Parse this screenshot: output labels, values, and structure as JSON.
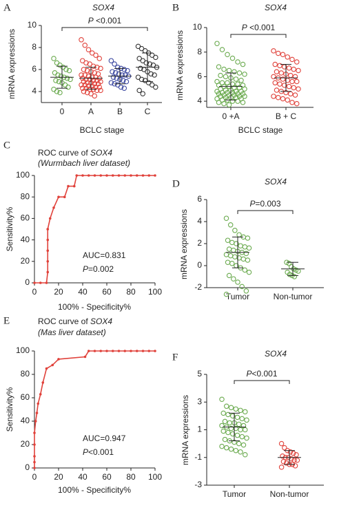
{
  "chart_data": [
    {
      "type": "dotplot",
      "panel": "A",
      "title": "SOX4",
      "ylabel": "mRNA expressions",
      "xlabel": "BCLC stage",
      "annotation": [
        "P",
        " <0.001"
      ],
      "ylim": [
        3,
        10
      ],
      "yticks": [
        4,
        6,
        8,
        10
      ],
      "categories": [
        "0",
        "A",
        "B",
        "C"
      ],
      "groups": [
        {
          "color": "#6aaa4e",
          "mean": 5.3,
          "sd": 1.0,
          "values": [
            7.0,
            6.6,
            6.4,
            6.2,
            6.0,
            5.9,
            5.7,
            5.5,
            5.4,
            5.3,
            5.2,
            5.1,
            5.0,
            4.9,
            4.8,
            4.6,
            4.4,
            4.2,
            4.0,
            3.9
          ]
        },
        {
          "color": "#e0413a",
          "mean": 5.2,
          "sd": 1.0,
          "values": [
            8.7,
            8.2,
            7.8,
            7.5,
            7.3,
            7.0,
            6.8,
            6.6,
            6.5,
            6.3,
            6.2,
            6.1,
            6.0,
            5.9,
            5.8,
            5.7,
            5.6,
            5.5,
            5.5,
            5.4,
            5.3,
            5.3,
            5.2,
            5.2,
            5.1,
            5.1,
            5.0,
            5.0,
            4.9,
            4.9,
            4.8,
            4.8,
            4.7,
            4.7,
            4.6,
            4.6,
            4.5,
            4.5,
            4.4,
            4.4,
            4.3,
            4.3,
            4.2,
            4.2,
            4.1,
            4.1,
            4.0,
            3.9,
            3.8,
            3.6
          ]
        },
        {
          "color": "#3a47a0",
          "mean": 5.4,
          "sd": 0.7,
          "values": [
            6.8,
            6.5,
            6.2,
            6.1,
            6.0,
            5.9,
            5.8,
            5.7,
            5.6,
            5.5,
            5.5,
            5.4,
            5.3,
            5.2,
            5.1,
            5.0,
            4.9,
            4.8,
            4.7,
            4.6,
            4.4,
            4.3
          ]
        },
        {
          "color": "#333333",
          "mean": 6.2,
          "sd": 1.3,
          "values": [
            8.1,
            7.9,
            7.7,
            7.5,
            7.3,
            7.1,
            7.0,
            6.8,
            6.6,
            6.5,
            6.4,
            6.2,
            6.1,
            6.0,
            5.8,
            5.6,
            5.5,
            5.3,
            5.1,
            5.0,
            4.8,
            4.6,
            4.4,
            4.1,
            3.8
          ]
        }
      ]
    },
    {
      "type": "dotplot",
      "panel": "B",
      "title": "SOX4",
      "ylabel": "mRNA expressions",
      "xlabel": "BCLC stage",
      "annotation": [
        "P",
        " <0.001"
      ],
      "ylim": [
        3.5,
        10
      ],
      "yticks": [
        4,
        6,
        8,
        10
      ],
      "categories": [
        "0 +A",
        "B + C"
      ],
      "groups": [
        {
          "color": "#6aaa4e",
          "mean": 5.2,
          "sd": 1.1,
          "values": [
            8.7,
            8.2,
            7.8,
            7.5,
            7.2,
            7.0,
            6.8,
            6.6,
            6.5,
            6.4,
            6.3,
            6.2,
            6.1,
            6.0,
            5.9,
            5.8,
            5.7,
            5.6,
            5.5,
            5.5,
            5.4,
            5.4,
            5.3,
            5.3,
            5.2,
            5.2,
            5.1,
            5.1,
            5.0,
            5.0,
            4.9,
            4.9,
            4.8,
            4.8,
            4.8,
            4.7,
            4.7,
            4.7,
            4.6,
            4.6,
            4.6,
            4.5,
            4.5,
            4.5,
            4.4,
            4.4,
            4.4,
            4.3,
            4.3,
            4.3,
            4.2,
            4.2,
            4.1,
            4.1,
            4.0,
            4.0,
            3.9,
            3.9,
            3.8,
            3.7
          ]
        },
        {
          "color": "#e0413a",
          "mean": 5.9,
          "sd": 1.1,
          "values": [
            8.1,
            7.9,
            7.8,
            7.6,
            7.4,
            7.2,
            7.0,
            6.9,
            6.8,
            6.7,
            6.6,
            6.5,
            6.4,
            6.3,
            6.2,
            6.1,
            6.0,
            6.0,
            5.9,
            5.8,
            5.7,
            5.6,
            5.6,
            5.5,
            5.4,
            5.3,
            5.2,
            5.1,
            5.0,
            4.9,
            4.8,
            4.7,
            4.6,
            4.5,
            4.4,
            4.3,
            4.2,
            4.1,
            3.9,
            3.8
          ]
        }
      ]
    },
    {
      "type": "line",
      "panel": "C",
      "title": [
        "ROC curve of ",
        "SOX4"
      ],
      "subtitle": "(Wurmbach liver dataset)",
      "xlabel": "100% - Specificity%",
      "ylabel": "Sensitivity%",
      "auc": "AUC=0.831",
      "p_value": [
        "P",
        "=0.002"
      ],
      "color": "#e0413a",
      "xlim": [
        0,
        100
      ],
      "ylim": [
        0,
        100
      ],
      "xticks": [
        0,
        20,
        40,
        60,
        80,
        100
      ],
      "yticks": [
        0,
        20,
        40,
        60,
        80,
        100
      ],
      "x": [
        0,
        5,
        10,
        11,
        11,
        11,
        11,
        11,
        11,
        13,
        16,
        20,
        25,
        28,
        33,
        35,
        40,
        45,
        50,
        55,
        60,
        65,
        70,
        75,
        80,
        85,
        90,
        95,
        100
      ],
      "values": [
        0,
        0,
        0,
        10,
        20,
        30,
        40,
        50,
        50,
        60,
        70,
        80,
        80,
        90,
        90,
        100,
        100,
        100,
        100,
        100,
        100,
        100,
        100,
        100,
        100,
        100,
        100,
        100,
        100
      ]
    },
    {
      "type": "dotplot",
      "panel": "D",
      "title": "SOX4",
      "ylabel": "mRNA expressions",
      "annotation": [
        "P",
        "=0.003"
      ],
      "ylim": [
        -2,
        6
      ],
      "yticks": [
        -2,
        0,
        2,
        4,
        6
      ],
      "categories": [
        "Tumor",
        "Non-tumor"
      ],
      "groups": [
        {
          "color": "#6aaa4e",
          "mean": 1.2,
          "sd": 1.4,
          "values": [
            4.3,
            3.7,
            3.2,
            2.8,
            2.6,
            2.5,
            2.3,
            2.1,
            2.0,
            1.8,
            1.7,
            1.6,
            1.5,
            1.4,
            1.3,
            1.2,
            1.1,
            1.0,
            0.9,
            0.8,
            0.7,
            0.6,
            0.5,
            0.3,
            0.2,
            0.0,
            -0.2,
            -0.4,
            -0.6,
            -0.9,
            -1.2,
            -1.5,
            -1.9,
            -2.3,
            -2.6
          ]
        },
        {
          "color": "#6aaa4e",
          "mean": -0.3,
          "sd": 0.6,
          "values": [
            0.3,
            0.2,
            -0.1,
            -0.3,
            -0.4,
            -0.5,
            -0.6,
            -0.8,
            -0.9,
            -1.0
          ]
        }
      ]
    },
    {
      "type": "line",
      "panel": "E",
      "title": [
        "ROC curve of ",
        "SOX4"
      ],
      "subtitle": "(Mas liver dataset)",
      "xlabel": "100% - Specificity%",
      "ylabel": "Sensitivity%",
      "auc": "AUC=0.947",
      "p_value": [
        "P",
        "<0.001"
      ],
      "color": "#e0413a",
      "xlim": [
        0,
        100
      ],
      "ylim": [
        0,
        100
      ],
      "xticks": [
        0,
        20,
        40,
        60,
        80,
        100
      ],
      "yticks": [
        0,
        20,
        40,
        60,
        80,
        100
      ],
      "x": [
        0,
        0,
        0,
        0,
        0,
        1,
        2,
        3,
        5,
        7,
        10,
        15,
        20,
        42,
        45,
        50,
        55,
        60,
        65,
        70,
        75,
        80,
        85,
        90,
        95,
        100
      ],
      "values": [
        0,
        5,
        10,
        20,
        30,
        40,
        47,
        55,
        63,
        73,
        85,
        88,
        93,
        95,
        100,
        100,
        100,
        100,
        100,
        100,
        100,
        100,
        100,
        100,
        100,
        100
      ]
    },
    {
      "type": "dotplot",
      "panel": "F",
      "title": "SOX4",
      "ylabel": "mRNA expressions",
      "annotation": [
        "P",
        "<0.001"
      ],
      "ylim": [
        -3,
        5
      ],
      "yticks": [
        -3,
        -1,
        1,
        3,
        5
      ],
      "categories": [
        "Tumor",
        "Non-tumor"
      ],
      "groups": [
        {
          "color": "#6aaa4e",
          "mean": 1.2,
          "sd": 1.0,
          "values": [
            3.2,
            2.7,
            2.6,
            2.5,
            2.4,
            2.3,
            2.2,
            2.1,
            2.0,
            1.9,
            1.8,
            1.7,
            1.6,
            1.5,
            1.5,
            1.4,
            1.3,
            1.3,
            1.2,
            1.1,
            1.1,
            1.0,
            1.0,
            0.9,
            0.8,
            0.7,
            0.6,
            0.5,
            0.4,
            0.3,
            0.2,
            0.1,
            0.0,
            -0.1,
            -0.2,
            -0.3,
            -0.4,
            -0.5,
            -0.6,
            -0.8
          ]
        },
        {
          "color": "#e0413a",
          "mean": -1.0,
          "sd": 0.5,
          "values": [
            0.0,
            -0.3,
            -0.5,
            -0.6,
            -0.7,
            -0.8,
            -0.9,
            -1.0,
            -1.0,
            -1.1,
            -1.2,
            -1.2,
            -1.3,
            -1.4,
            -1.5,
            -1.5,
            -1.6,
            -1.7
          ]
        }
      ]
    }
  ]
}
